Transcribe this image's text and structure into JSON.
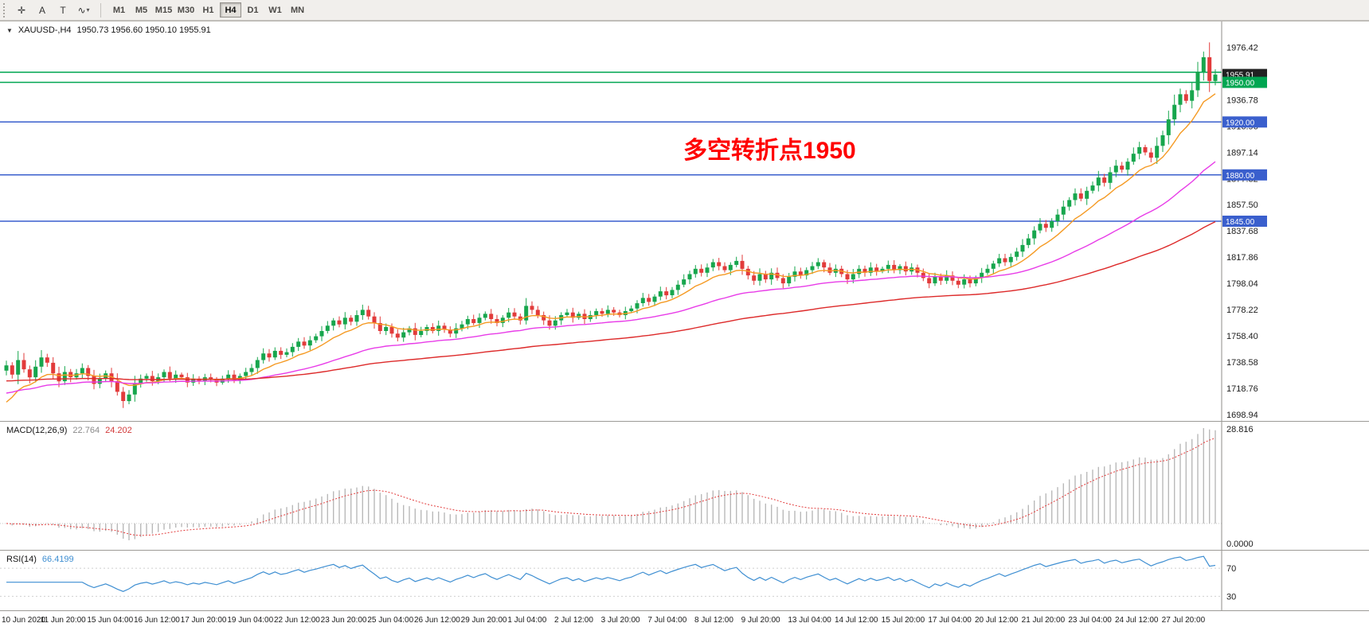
{
  "toolbar": {
    "tools": [
      {
        "name": "crosshair",
        "glyph": "✛"
      },
      {
        "name": "text",
        "glyph": "A"
      },
      {
        "name": "label",
        "glyph": "T"
      },
      {
        "name": "indicators",
        "glyph": "∿"
      }
    ],
    "timeframes": [
      "M1",
      "M5",
      "M15",
      "M30",
      "H1",
      "H4",
      "D1",
      "W1",
      "MN"
    ],
    "active_timeframe": "H4"
  },
  "chart_header": {
    "dropdown_icon": "▼",
    "symbol_period": "XAUUSD-,H4",
    "ohlc": "1950.73 1956.60 1950.10 1955.91"
  },
  "annotation": {
    "text": "多空转折点1950",
    "color": "#ff0000"
  },
  "price_axis": {
    "grid_labels": [
      "1976.42",
      "1956.60",
      "1936.78",
      "1916.96",
      "1897.14",
      "1877.32",
      "1857.50",
      "1837.68",
      "1817.86",
      "1798.04",
      "1778.22",
      "1758.40",
      "1738.58",
      "1718.76",
      "1698.94"
    ],
    "price_boxes": [
      {
        "name": "current-price",
        "value": "1955.91",
        "price": 1955.91,
        "bg": "#222222",
        "fg": "#ffffff"
      },
      {
        "name": "hline-1950",
        "value": "1950.00",
        "price": 1950.0,
        "bg": "#00a651",
        "fg": "#ffffff"
      },
      {
        "name": "hline-1920",
        "value": "1920.00",
        "price": 1920.0,
        "bg": "#3a5fcd",
        "fg": "#ffffff"
      },
      {
        "name": "hline-1880",
        "value": "1880.00",
        "price": 1880.0,
        "bg": "#3a5fcd",
        "fg": "#ffffff"
      },
      {
        "name": "hline-1845",
        "value": "1845.00",
        "price": 1845.0,
        "bg": "#3a5fcd",
        "fg": "#ffffff"
      }
    ]
  },
  "chart_data": {
    "type": "candlestick",
    "symbol": "XAUUSD",
    "timeframe": "H4",
    "title": "XAUUSD-,H4 1950.73 1956.60 1950.10 1955.91",
    "price_range": {
      "min": 1694,
      "max": 1996
    },
    "up_color": "#17a64d",
    "down_color": "#e23b3b",
    "label_every_n_bars": 8,
    "time_labels": [
      "10 Jun 2020",
      "11 Jun 20:00",
      "15 Jun 04:00",
      "16 Jun 12:00",
      "17 Jun 20:00",
      "19 Jun 04:00",
      "22 Jun 12:00",
      "23 Jun 20:00",
      "25 Jun 04:00",
      "26 Jun 12:00",
      "29 Jun 20:00",
      "1 Jul 04:00",
      "2 Jul 12:00",
      "3 Jul 20:00",
      "7 Jul 04:00",
      "8 Jul 12:00",
      "9 Jul 20:00",
      "13 Jul 04:00",
      "14 Jul 12:00",
      "15 Jul 20:00",
      "17 Jul 04:00",
      "20 Jul 12:00",
      "21 Jul 20:00",
      "23 Jul 04:00",
      "24 Jul 12:00",
      "27 Jul 20:00"
    ],
    "closes": [
      1736,
      1729,
      1740,
      1733,
      1727,
      1735,
      1742,
      1738,
      1730,
      1724,
      1731,
      1727,
      1730,
      1734,
      1728,
      1722,
      1726,
      1730,
      1724,
      1716,
      1709,
      1714,
      1722,
      1726,
      1728,
      1724,
      1727,
      1731,
      1726,
      1729,
      1727,
      1723,
      1726,
      1724,
      1727,
      1725,
      1723,
      1726,
      1729,
      1725,
      1728,
      1731,
      1734,
      1740,
      1745,
      1742,
      1747,
      1744,
      1746,
      1750,
      1754,
      1751,
      1755,
      1758,
      1762,
      1766,
      1770,
      1767,
      1772,
      1769,
      1774,
      1778,
      1773,
      1768,
      1762,
      1765,
      1760,
      1757,
      1761,
      1764,
      1759,
      1762,
      1765,
      1762,
      1766,
      1763,
      1760,
      1764,
      1767,
      1771,
      1768,
      1772,
      1775,
      1771,
      1768,
      1772,
      1776,
      1773,
      1770,
      1781,
      1778,
      1774,
      1770,
      1766,
      1770,
      1774,
      1776,
      1772,
      1775,
      1771,
      1774,
      1777,
      1775,
      1778,
      1776,
      1774,
      1777,
      1779,
      1783,
      1787,
      1784,
      1788,
      1792,
      1789,
      1793,
      1797,
      1801,
      1805,
      1809,
      1806,
      1810,
      1814,
      1811,
      1808,
      1812,
      1815,
      1809,
      1804,
      1800,
      1805,
      1801,
      1806,
      1802,
      1798,
      1803,
      1807,
      1804,
      1808,
      1811,
      1814,
      1810,
      1806,
      1809,
      1805,
      1801,
      1805,
      1809,
      1806,
      1810,
      1807,
      1809,
      1812,
      1808,
      1811,
      1807,
      1810,
      1806,
      1802,
      1798,
      1803,
      1800,
      1804,
      1800,
      1797,
      1801,
      1798,
      1802,
      1806,
      1809,
      1813,
      1817,
      1814,
      1818,
      1822,
      1827,
      1832,
      1838,
      1843,
      1840,
      1845,
      1850,
      1856,
      1861,
      1866,
      1862,
      1868,
      1872,
      1878,
      1874,
      1882,
      1887,
      1884,
      1890,
      1896,
      1901,
      1897,
      1893,
      1902,
      1910,
      1922,
      1933,
      1941,
      1936,
      1944,
      1958,
      1969,
      1951,
      1955.9
    ],
    "hlines": [
      {
        "price": 1957.7,
        "color": "#00a651"
      },
      {
        "price": 1950.0,
        "color": "#00a651"
      },
      {
        "price": 1920.0,
        "color": "#3a5fcd"
      },
      {
        "price": 1880.0,
        "color": "#3a5fcd"
      },
      {
        "price": 1845.0,
        "color": "#3a5fcd"
      }
    ],
    "moving_averages": [
      {
        "period": 10,
        "color": "#f59a23",
        "seed": 1702
      },
      {
        "period": 40,
        "color": "#e83ce8",
        "seed": 1714
      },
      {
        "period": 100,
        "color": "#dd2a2a",
        "seed": 1724
      }
    ],
    "macd": {
      "label": "MACD(12,26,9)",
      "value_main": "22.764",
      "value_signal": "24.202",
      "fast": 12,
      "slow": 26,
      "signal": 9,
      "axis_max_label": "28.816",
      "axis_zero_label": "0.0000",
      "bar_color": "#b9b9b9",
      "signal_color": "#e23b3b"
    },
    "rsi": {
      "label": "RSI(14)",
      "value": "66.4199",
      "period": 14,
      "levels": [
        70,
        30
      ],
      "color": "#3f8fd2"
    }
  }
}
